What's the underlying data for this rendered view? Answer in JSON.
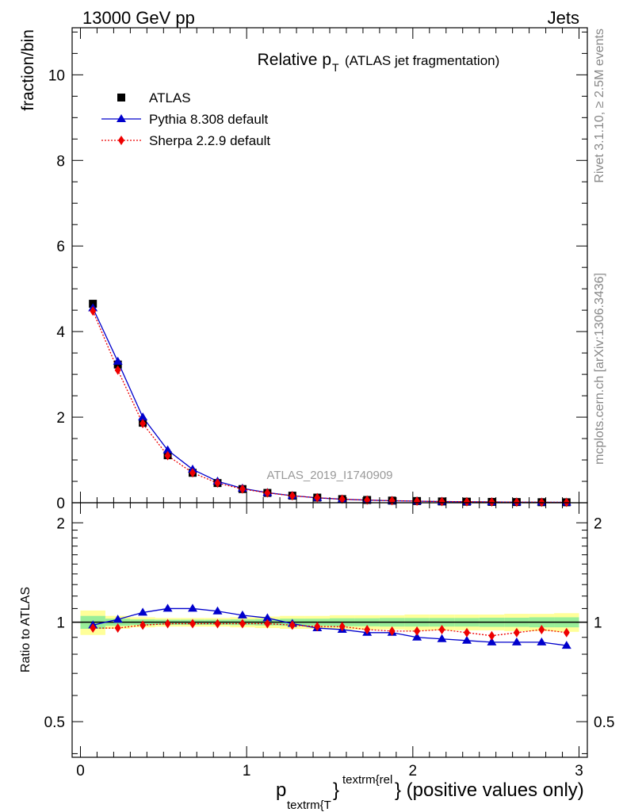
{
  "header": {
    "left": "13000 GeV pp",
    "right": "Jets"
  },
  "side": {
    "rivet": "Rivet 3.1.10, ≥ 2.5M events",
    "mcplots": "mcplots.cern.ch [arXiv:1306.3436]"
  },
  "chart_data": [
    {
      "type": "scatter",
      "title_main": "Relative p",
      "title_sub": "T",
      "title_note": "(ATLAS jet fragmentation)",
      "ylabel": "fraction/bin",
      "watermark": "ATLAS_2019_I1740909",
      "xlim": [
        -0.05,
        3.05
      ],
      "ylim": [
        0,
        11.1
      ],
      "yticks": [
        0,
        2,
        4,
        6,
        8,
        10
      ],
      "x": [
        0.075,
        0.225,
        0.375,
        0.525,
        0.675,
        0.825,
        0.975,
        1.125,
        1.275,
        1.425,
        1.575,
        1.725,
        1.875,
        2.025,
        2.175,
        2.325,
        2.475,
        2.625,
        2.775,
        2.925
      ],
      "series": [
        {
          "name": "ATLAS",
          "marker": "square",
          "color": "#000000",
          "values": [
            4.65,
            3.23,
            1.87,
            1.11,
            0.7,
            0.46,
            0.32,
            0.23,
            0.165,
            0.12,
            0.085,
            0.065,
            0.05,
            0.04,
            0.03,
            0.025,
            0.02,
            0.016,
            0.013,
            0.011
          ]
        },
        {
          "name": "Pythia 8.308 default",
          "marker": "triangle",
          "color": "#0000cc",
          "line": "solid",
          "values": [
            4.55,
            3.3,
            2.0,
            1.23,
            0.78,
            0.5,
            0.335,
            0.235,
            0.165,
            0.115,
            0.082,
            0.061,
            0.047,
            0.037,
            0.027,
            0.022,
            0.017,
            0.014,
            0.011,
            0.009
          ]
        },
        {
          "name": "Sherpa 2.2.9 default",
          "marker": "diamond",
          "color": "#ee0000",
          "line": "dotted",
          "values": [
            4.48,
            3.1,
            1.85,
            1.1,
            0.7,
            0.46,
            0.32,
            0.23,
            0.162,
            0.117,
            0.083,
            0.062,
            0.048,
            0.038,
            0.028,
            0.023,
            0.018,
            0.015,
            0.012,
            0.01
          ]
        }
      ]
    },
    {
      "type": "scatter",
      "ylabel": "Ratio to ATLAS",
      "xlabel_main": "p",
      "xlabel_sub": "textrm{T",
      "xlabel_sup": "textrm{rel",
      "xlabel_tail": "} (positive values only)",
      "xlim": [
        -0.05,
        3.05
      ],
      "ylim": [
        0.39,
        2.3
      ],
      "yscale": "log",
      "yticks": [
        0.5,
        1,
        2
      ],
      "ytick_labels": [
        "0.5",
        "1",
        "2"
      ],
      "xticks": [
        0,
        1,
        2,
        3
      ],
      "xtick_labels": [
        "0",
        "1",
        "2",
        "3"
      ],
      "x": [
        0.075,
        0.225,
        0.375,
        0.525,
        0.675,
        0.825,
        0.975,
        1.125,
        1.275,
        1.425,
        1.575,
        1.725,
        1.875,
        2.025,
        2.175,
        2.325,
        2.475,
        2.625,
        2.775,
        2.925
      ],
      "band_yellow": [
        0.085,
        0.045,
        0.035,
        0.03,
        0.03,
        0.03,
        0.035,
        0.04,
        0.045,
        0.045,
        0.05,
        0.05,
        0.05,
        0.055,
        0.055,
        0.055,
        0.055,
        0.06,
        0.06,
        0.065
      ],
      "band_green": [
        0.045,
        0.025,
        0.02,
        0.018,
        0.018,
        0.018,
        0.02,
        0.022,
        0.025,
        0.025,
        0.028,
        0.028,
        0.03,
        0.03,
        0.03,
        0.03,
        0.032,
        0.032,
        0.035,
        0.035
      ],
      "series": [
        {
          "name": "Pythia 8.308 default",
          "marker": "triangle",
          "color": "#0000cc",
          "line": "solid",
          "values": [
            0.98,
            1.02,
            1.07,
            1.1,
            1.1,
            1.08,
            1.05,
            1.03,
            0.99,
            0.96,
            0.95,
            0.93,
            0.93,
            0.9,
            0.89,
            0.88,
            0.87,
            0.87,
            0.87,
            0.85
          ]
        },
        {
          "name": "Sherpa 2.2.9 default",
          "marker": "diamond",
          "color": "#ee0000",
          "line": "dotted",
          "values": [
            0.96,
            0.96,
            0.98,
            0.99,
            0.99,
            0.99,
            0.99,
            0.99,
            0.98,
            0.97,
            0.97,
            0.95,
            0.94,
            0.94,
            0.95,
            0.93,
            0.91,
            0.93,
            0.95,
            0.93
          ]
        }
      ]
    }
  ]
}
